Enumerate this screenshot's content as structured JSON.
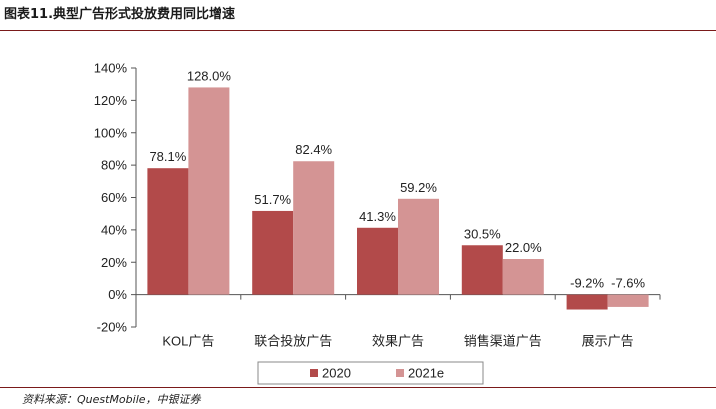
{
  "header": {
    "figure_title": "图表11.典型广告形式投放费用同比增速"
  },
  "chart_data": {
    "type": "bar",
    "categories": [
      "KOL广告",
      "联合投放广告",
      "效果广告",
      "销售渠道广告",
      "展示广告"
    ],
    "series": [
      {
        "name": "2020",
        "values": [
          78.1,
          51.7,
          41.3,
          30.5,
          -9.2
        ],
        "labels": [
          "78.1%",
          "51.7%",
          "41.3%",
          "30.5%",
          "-9.2%"
        ]
      },
      {
        "name": "2021e",
        "values": [
          128.0,
          82.4,
          59.2,
          22.0,
          -7.6
        ],
        "labels": [
          "128.0%",
          "82.4%",
          "59.2%",
          "22.0%",
          "-7.6%"
        ]
      }
    ],
    "ylim": [
      -20,
      140
    ],
    "yticks": [
      -20,
      0,
      20,
      40,
      60,
      80,
      100,
      120,
      140
    ],
    "ytick_labels": [
      "-20%",
      "0%",
      "20%",
      "40%",
      "60%",
      "80%",
      "100%",
      "120%",
      "140%"
    ],
    "title": "",
    "xlabel": "",
    "ylabel": "",
    "grid": false,
    "legend_position": "bottom",
    "colors": {
      "2020": "#b24a4a",
      "2021e": "#d49494"
    }
  },
  "footer": {
    "source": "资料来源：QuestMobile，中银证券"
  }
}
